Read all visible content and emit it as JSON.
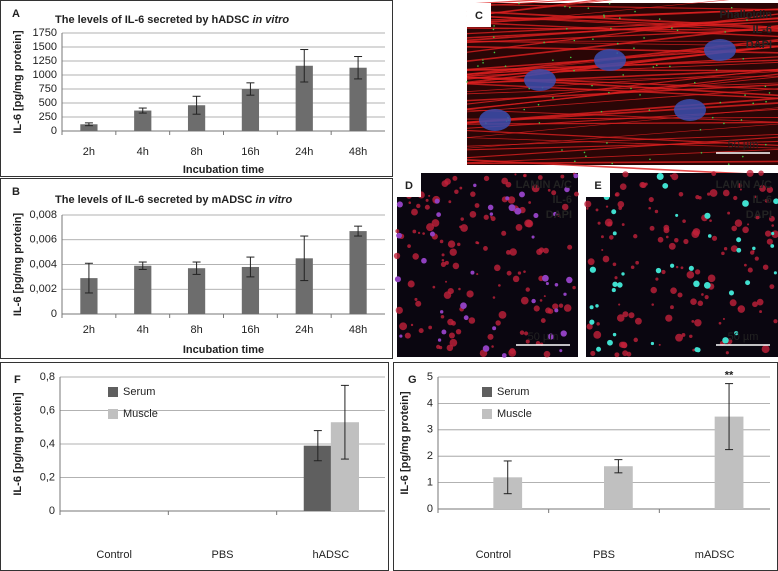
{
  "chart_data": [
    {
      "type": "bar",
      "panel_label": "A",
      "title": "The levels of IL-6 secreted by hADSC",
      "title_italic": "in vitro",
      "categories": [
        "2h",
        "4h",
        "8h",
        "16h",
        "24h",
        "48h"
      ],
      "values": [
        120,
        365,
        460,
        750,
        1165,
        1130
      ],
      "errors": [
        25,
        45,
        160,
        110,
        290,
        200
      ],
      "color": "#6d6d6d",
      "xlabel": "Incubation time",
      "ylabel": "IL-6 [pg/mg protein]",
      "ylim": [
        0,
        1750
      ],
      "yticks": [
        0,
        250,
        500,
        750,
        1000,
        1250,
        1500,
        1750
      ],
      "grid": true
    },
    {
      "type": "bar",
      "panel_label": "B",
      "title": "The levels of IL-6 secreted by mADSC",
      "title_italic": "in vitro",
      "categories": [
        "2h",
        "4h",
        "8h",
        "16h",
        "24h",
        "48h"
      ],
      "values": [
        0.0029,
        0.0039,
        0.0037,
        0.0038,
        0.0045,
        0.0067
      ],
      "errors": [
        0.0012,
        0.0003,
        0.0005,
        0.0008,
        0.0018,
        0.0004
      ],
      "color": "#6d6d6d",
      "xlabel": "Incubation time",
      "ylabel": "IL-6 [pg/mg protein]",
      "ylim": [
        0,
        0.008
      ],
      "yticks": [
        0,
        {
          "value": 0.002,
          "label": "0,002"
        },
        {
          "value": 0.004,
          "label": "0,004"
        },
        {
          "value": 0.006,
          "label": "0,006"
        },
        {
          "value": 0.008,
          "label": "0,008"
        }
      ],
      "grid": true
    },
    {
      "type": "bar",
      "panel_label": "F",
      "categories": [
        "Control",
        "PBS",
        "hADSC"
      ],
      "series": [
        {
          "name": "Serum",
          "color": "#5f5f5f",
          "values": [
            null,
            null,
            0.39
          ],
          "errors": [
            null,
            null,
            0.09
          ]
        },
        {
          "name": "Muscle",
          "color": "#c0c0c0",
          "values": [
            null,
            null,
            0.53
          ],
          "errors": [
            null,
            null,
            0.22
          ]
        }
      ],
      "ylabel": "IL-6 [pg/mg protein]",
      "ylim": [
        0,
        0.8
      ],
      "yticks": [
        0,
        {
          "value": 0.2,
          "label": "0,2"
        },
        {
          "value": 0.4,
          "label": "0,4"
        },
        {
          "value": 0.6,
          "label": "0,6"
        },
        {
          "value": 0.8,
          "label": "0,8"
        }
      ],
      "grid": true
    },
    {
      "type": "bar",
      "panel_label": "G",
      "categories": [
        "Control",
        "PBS",
        "mADSC"
      ],
      "series": [
        {
          "name": "Serum",
          "color": "#5f5f5f",
          "values": [
            null,
            null,
            null
          ],
          "errors": [
            null,
            null,
            null
          ]
        },
        {
          "name": "Muscle",
          "color": "#c0c0c0",
          "values": [
            1.2,
            1.62,
            3.5
          ],
          "errors": [
            0.62,
            0.25,
            1.25
          ]
        }
      ],
      "ylabel": "IL-6 [pg/mg protein]",
      "annotation": "**",
      "ylim": [
        0,
        5
      ],
      "yticks": [
        0,
        1,
        2,
        3,
        4,
        5
      ],
      "grid": true
    }
  ],
  "images": [
    {
      "panel_label": "C",
      "stains": [
        {
          "name": "Phalloidin",
          "color": "#ff2a2a"
        },
        {
          "name": "IL-6",
          "color": "#33dd33"
        },
        {
          "name": "DAPI",
          "color": "#4466ff"
        }
      ],
      "scale_bar": "50 µm"
    },
    {
      "panel_label": "D",
      "stains": [
        {
          "name": "LAMIN A/C",
          "color": "#33dd33"
        },
        {
          "name": "IL-6",
          "color": "#ff2a2a"
        },
        {
          "name": "DAPI",
          "color": "#4466ff"
        }
      ],
      "scale_bar": "50 µm"
    },
    {
      "panel_label": "E",
      "stains": [
        {
          "name": "LAMIN A/C",
          "color": "#33dd33"
        },
        {
          "name": "IL-6",
          "color": "#ff2a2a"
        },
        {
          "name": "DAPI",
          "color": "#4466ff"
        }
      ],
      "scale_bar": "50 µm"
    }
  ]
}
